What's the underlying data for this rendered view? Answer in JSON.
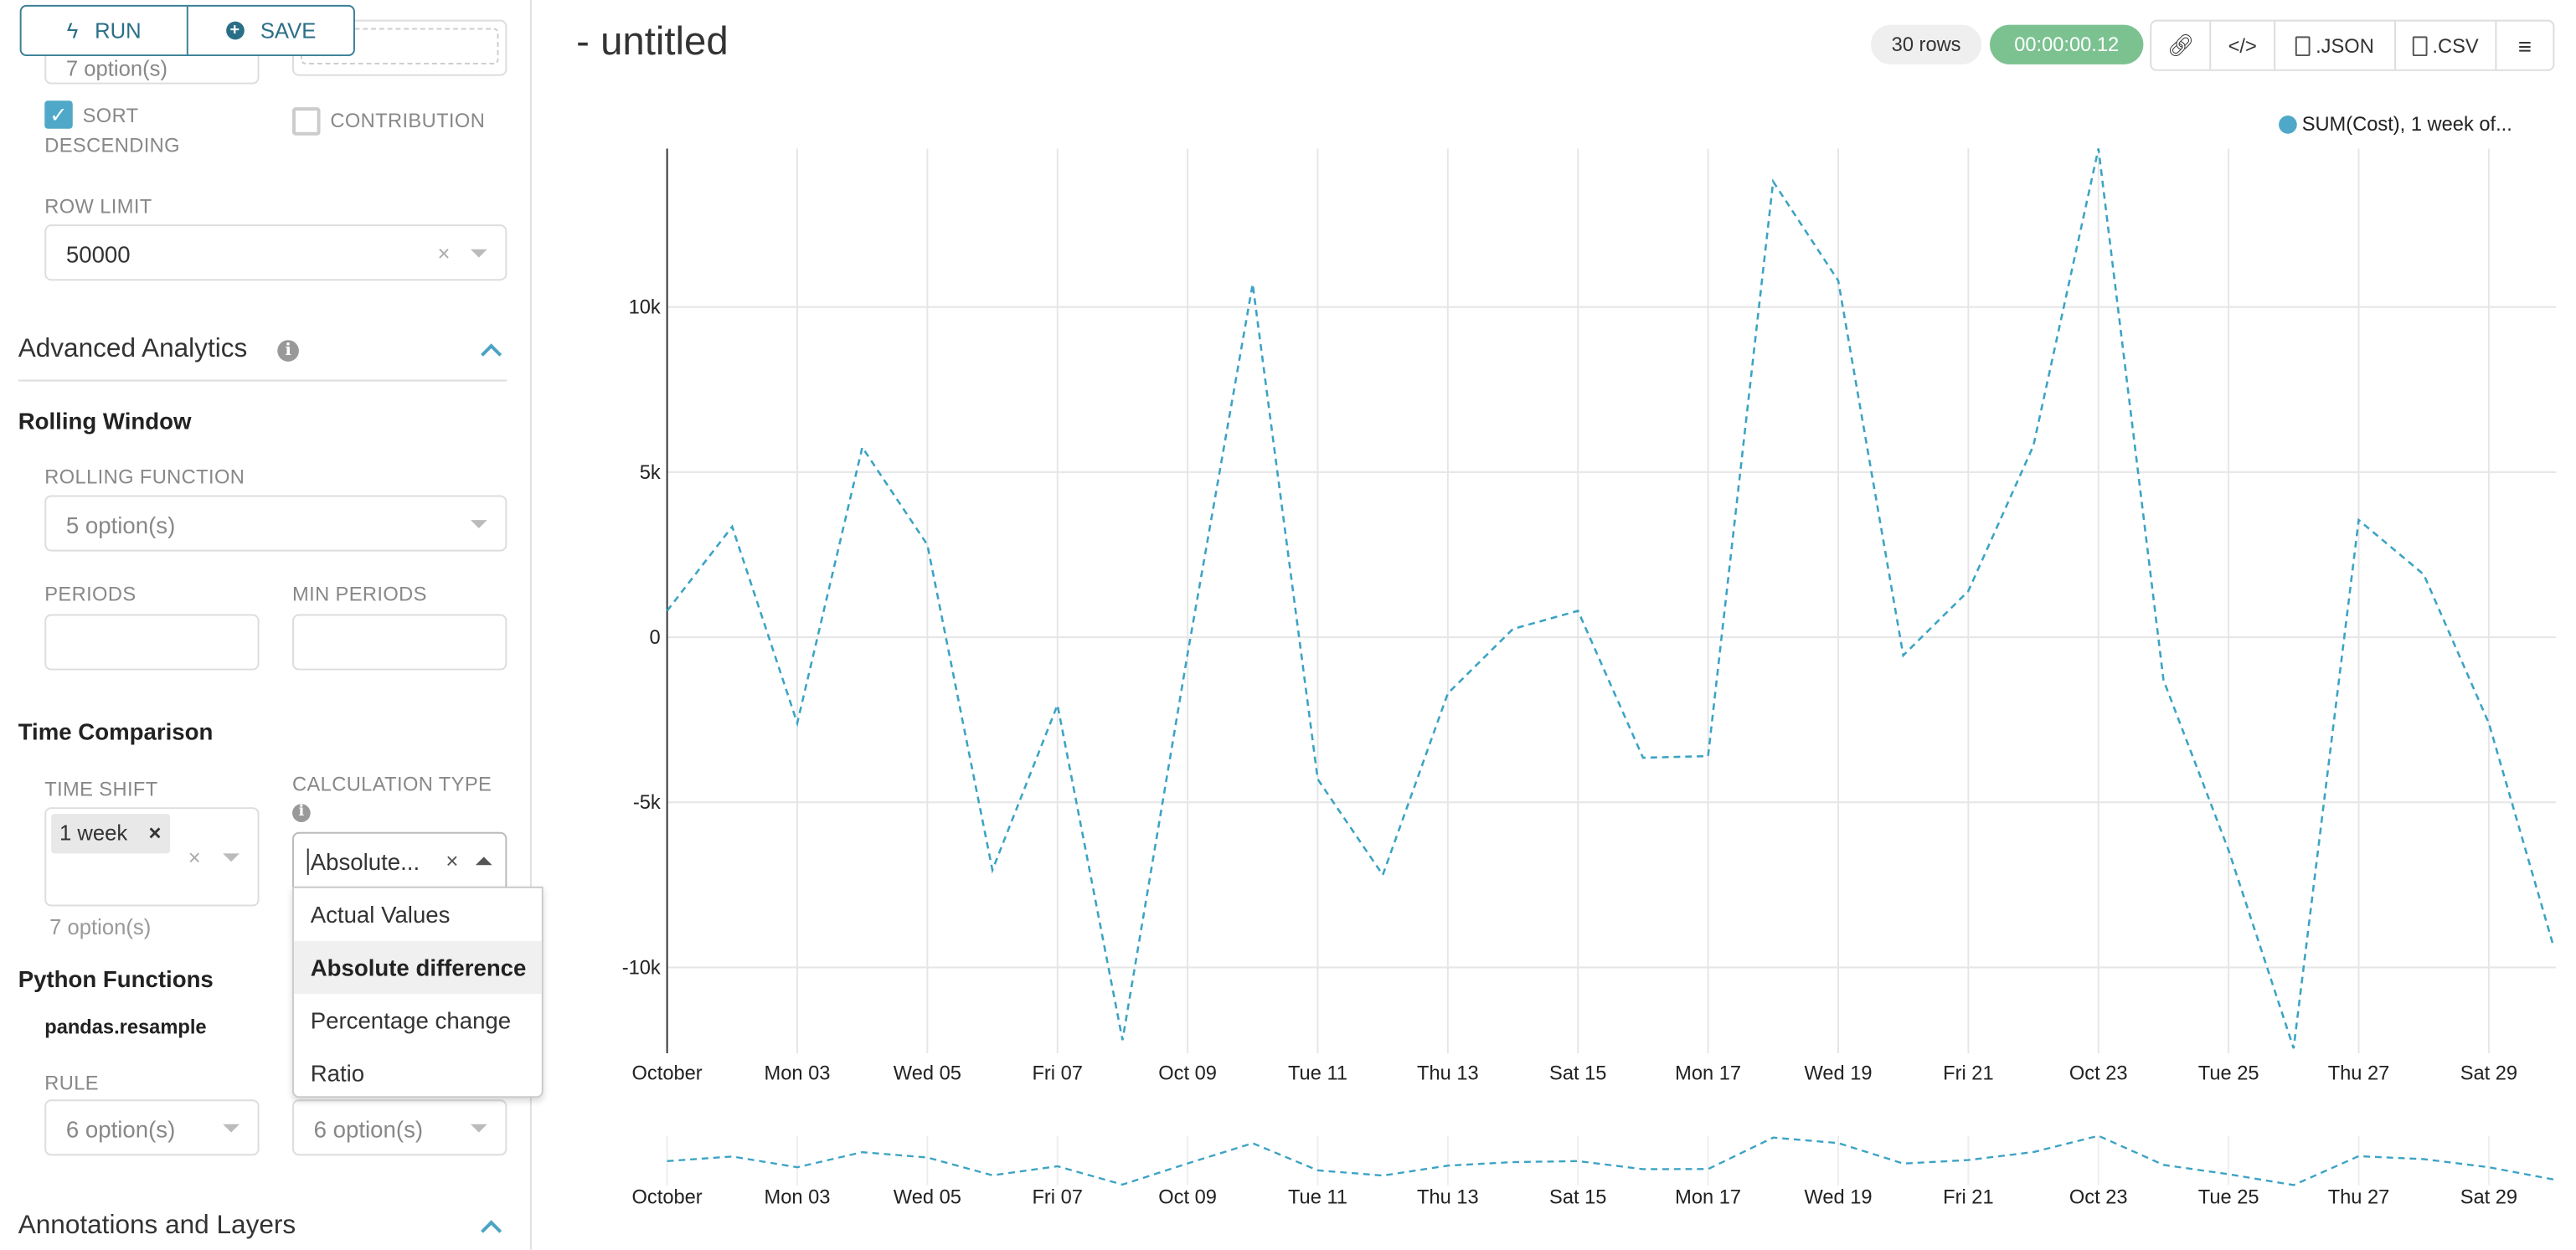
{
  "toolbar": {
    "run_label": "RUN",
    "save_label": "SAVE"
  },
  "sidebar": {
    "top_partial_select": "7 option(s)",
    "sort_descending": {
      "label_1": "SORT",
      "label_2": "DESCENDING",
      "checked": true
    },
    "contribution": {
      "label": "CONTRIBUTION",
      "checked": false
    },
    "row_limit": {
      "label": "ROW LIMIT",
      "value": "50000"
    },
    "advanced_analytics": {
      "title": "Advanced Analytics",
      "rolling_window": {
        "title": "Rolling Window",
        "function_label": "ROLLING FUNCTION",
        "function_placeholder": "5 option(s)",
        "periods_label": "PERIODS",
        "min_periods_label": "MIN PERIODS"
      },
      "time_comparison": {
        "title": "Time Comparison",
        "time_shift_label": "TIME SHIFT",
        "time_shift_tag": "1 week",
        "time_shift_hint": "7 option(s)",
        "calc_type_label": "CALCULATION TYPE",
        "calc_type_value": "Absolute...",
        "calc_options": [
          "Actual Values",
          "Absolute difference",
          "Percentage change",
          "Ratio"
        ],
        "calc_highlighted": "Absolute difference"
      },
      "python_functions": {
        "title": "Python Functions",
        "subtitle": "pandas.resample",
        "rule_label": "RULE",
        "rule_placeholder": "6 option(s)",
        "method_placeholder": "6 option(s)"
      }
    },
    "annotations": {
      "title": "Annotations and Layers"
    }
  },
  "header": {
    "title": "- untitled",
    "rows_badge": "30 rows",
    "timer_badge": "00:00:00.12",
    "json_label": ".JSON",
    "csv_label": ".CSV"
  },
  "colors": {
    "accent": "#4aa3c3",
    "timer": "#7cc291",
    "series": "#3ba3c4"
  },
  "chart_data": {
    "type": "line",
    "legend": "SUM(Cost), 1 week of...",
    "legend_position": "top-right",
    "line_style": "dashed",
    "x": [
      "Oct 01",
      "Oct 02",
      "Oct 03",
      "Oct 04",
      "Oct 05",
      "Oct 06",
      "Oct 07",
      "Oct 08",
      "Oct 09",
      "Oct 10",
      "Oct 11",
      "Oct 12",
      "Oct 13",
      "Oct 14",
      "Oct 15",
      "Oct 16",
      "Oct 17",
      "Oct 18",
      "Oct 19",
      "Oct 20",
      "Oct 21",
      "Oct 22",
      "Oct 23",
      "Oct 24",
      "Oct 25",
      "Oct 26",
      "Oct 27",
      "Oct 28",
      "Oct 29",
      "Oct 30"
    ],
    "values": [
      800,
      3350,
      -2600,
      5750,
      2800,
      -7050,
      -2050,
      -12200,
      -500,
      10700,
      -4300,
      -7200,
      -1700,
      250,
      800,
      -3650,
      -3600,
      13800,
      10800,
      -550,
      1400,
      5800,
      14800,
      -1300,
      -6450,
      -12450,
      3550,
      1900,
      -2600,
      -9400
    ],
    "x_tick_labels": [
      "October",
      "Mon 03",
      "Wed 05",
      "Fri 07",
      "Oct 09",
      "Tue 11",
      "Thu 13",
      "Sat 15",
      "Mon 17",
      "Wed 19",
      "Fri 21",
      "Oct 23",
      "Tue 25",
      "Thu 27",
      "Sat 29"
    ],
    "y_ticks": [
      -10000,
      -5000,
      0,
      5000,
      10000
    ],
    "y_tick_labels": [
      "-10k",
      "-5k",
      "0",
      "5k",
      "10k"
    ],
    "ylim": [
      -12600,
      14800
    ],
    "grid": true,
    "range_brush": true
  }
}
